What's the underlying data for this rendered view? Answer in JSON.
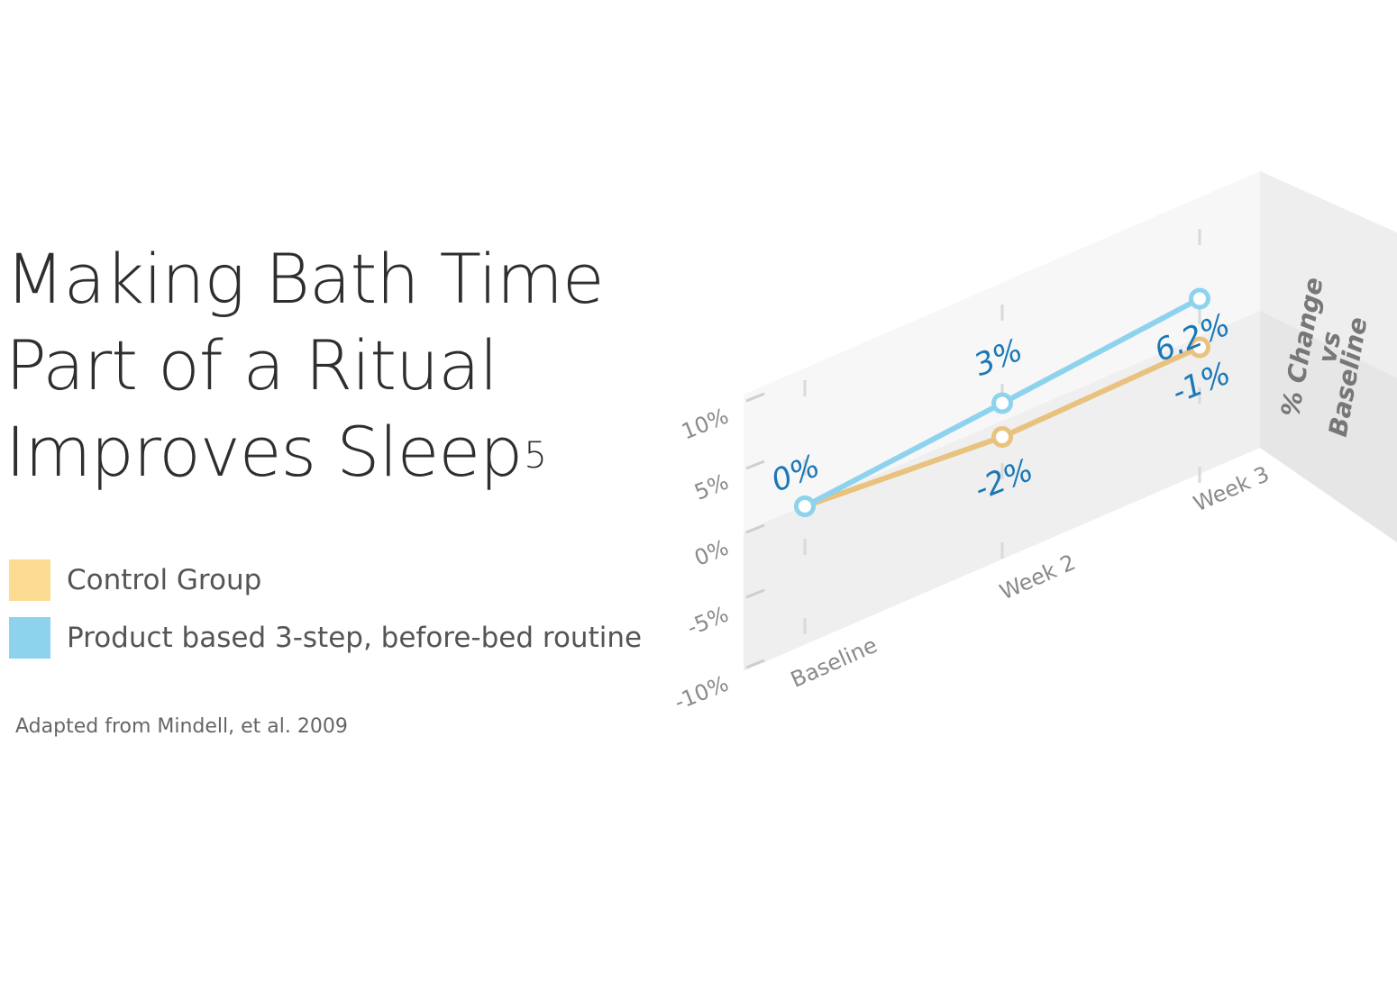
{
  "title_lines": [
    "Making Bath Time",
    "Part of a Ritual",
    "Improves Sleep"
  ],
  "title_superscript": "5",
  "legend": [
    {
      "label": "Control Group",
      "color": "#fcdc92"
    },
    {
      "label": "Product based 3-step, before-bed routine",
      "color": "#8dd3ee"
    }
  ],
  "source": "Adapted from Mindell, et al. 2009",
  "chart_data": {
    "type": "line",
    "categories": [
      "Baseline",
      "Week 2",
      "Week 3"
    ],
    "ylabel_lines": [
      "% Change",
      "vs",
      "Baseline"
    ],
    "ylim": [
      -10,
      10
    ],
    "yticks": [
      "10%",
      "5%",
      "0%",
      "-5%",
      "-10%"
    ],
    "series": [
      {
        "name": "Control Group",
        "values": [
          0,
          -2,
          -1
        ],
        "labels": [
          "",
          "-2%",
          "-1%"
        ],
        "color": "#e8c27e"
      },
      {
        "name": "Product based 3-step, before-bed routine",
        "values": [
          0,
          3,
          6.2
        ],
        "labels": [
          "0%",
          "3%",
          "6.2%"
        ],
        "color": "#8dd3ee"
      }
    ],
    "label_color": "#1a78b8",
    "grid": true
  }
}
